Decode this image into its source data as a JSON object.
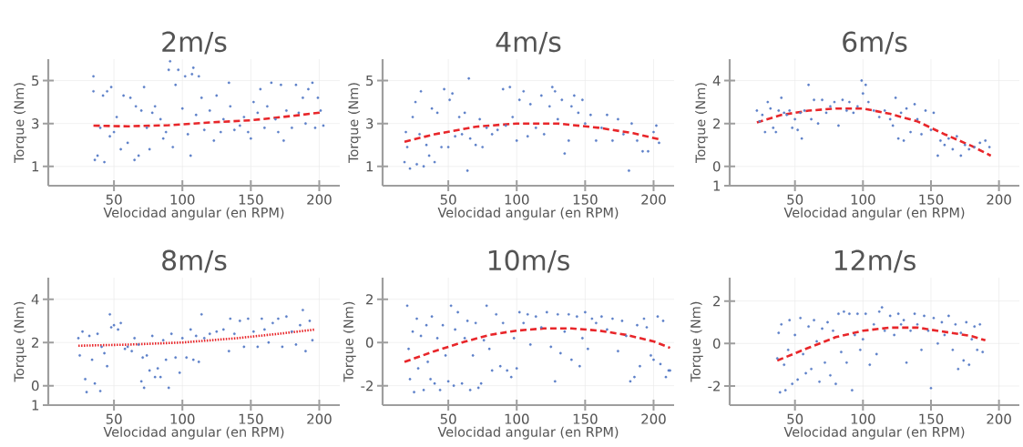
{
  "chart_data": [
    {
      "type": "scatter",
      "title": "2m/s",
      "xlabel": "Velocidad angular (en RPM)",
      "ylabel": "Torque (Nm)",
      "xlim": [
        2,
        215
      ],
      "xticks": [
        50,
        100,
        150,
        200
      ],
      "ylim": [
        0.1,
        6
      ],
      "yticks": [
        1,
        3,
        5
      ],
      "grid": true,
      "series": [
        {
          "color": "#5b7fc8",
          "x": [
            35,
            35,
            36,
            38,
            40,
            42,
            43,
            45,
            47,
            48,
            50,
            52,
            55,
            57,
            60,
            62,
            65,
            66,
            68,
            70,
            72,
            74,
            76,
            78,
            80,
            84,
            86,
            88,
            90,
            91,
            93,
            95,
            97,
            100,
            102,
            104,
            106,
            107,
            108,
            110,
            112,
            114,
            116,
            120,
            123,
            125,
            128,
            130,
            134,
            135,
            138,
            142,
            145,
            148,
            150,
            152,
            155,
            157,
            160,
            162,
            165,
            168,
            170,
            172,
            174,
            176,
            180,
            183,
            185,
            188,
            190,
            192,
            195,
            197,
            199,
            201,
            203
          ],
          "values": [
            5.2,
            4.5,
            1.3,
            1.5,
            2.8,
            4.3,
            1.2,
            4.5,
            2.4,
            4.7,
            2.6,
            3.3,
            1.8,
            4.3,
            2.1,
            4.2,
            1.3,
            3.8,
            1.5,
            3.6,
            4.7,
            2.8,
            1.8,
            3.5,
            3.8,
            3.2,
            2.3,
            2.6,
            5.5,
            5.9,
            1.9,
            4.8,
            5.5,
            3.7,
            5.2,
            2.5,
            1.5,
            5.3,
            5.6,
            3.4,
            5.2,
            4.2,
            2.7,
            3.6,
            2.2,
            4.3,
            2.6,
            3.2,
            4.9,
            3.8,
            2.7,
            2.9,
            3.3,
            2.6,
            2.3,
            4.0,
            3.5,
            4.6,
            2.8,
            3.8,
            4.9,
            3.2,
            2.6,
            4.8,
            2.2,
            3.6,
            2.8,
            4.8,
            3.5,
            4.2,
            3.0,
            4.6,
            4.9,
            2.8,
            4.2,
            3.6,
            2.9
          ]
        },
        {
          "type": "line",
          "color": "#e8262a",
          "line_style": "dashed",
          "marker": "none",
          "x": [
            35,
            60,
            90,
            120,
            150,
            180,
            202
          ],
          "values": [
            2.9,
            2.87,
            2.92,
            3.05,
            3.15,
            3.35,
            3.52
          ]
        }
      ]
    },
    {
      "type": "scatter",
      "title": "4m/s",
      "xlabel": "Velocidad angular (en RPM)",
      "ylabel": "Torque (Nm)",
      "xlim": [
        2,
        215
      ],
      "xticks": [
        50,
        100,
        150,
        200
      ],
      "ylim": [
        0.1,
        6
      ],
      "yticks": [
        1,
        3,
        5
      ],
      "grid": true,
      "series": [
        {
          "color": "#5b7fc8",
          "x": [
            18,
            19,
            20,
            22,
            24,
            26,
            27,
            29,
            30,
            32,
            34,
            36,
            38,
            40,
            42,
            45,
            47,
            50,
            51,
            53,
            55,
            58,
            60,
            62,
            64,
            65,
            66,
            70,
            73,
            75,
            78,
            82,
            86,
            90,
            92,
            95,
            97,
            100,
            102,
            105,
            108,
            110,
            114,
            118,
            120,
            124,
            126,
            128,
            130,
            133,
            135,
            138,
            140,
            142,
            145,
            148,
            150,
            154,
            158,
            162,
            166,
            170,
            174,
            178,
            182,
            184,
            188,
            192,
            196,
            200,
            202,
            204
          ],
          "values": [
            1.2,
            2.6,
            1.9,
            0.9,
            3.3,
            4.0,
            1.1,
            2.5,
            4.5,
            1.0,
            2.0,
            1.5,
            3.7,
            1.2,
            3.5,
            1.9,
            4.6,
            1.9,
            4.1,
            4.4,
            2.4,
            3.3,
            2.5,
            3.5,
            0.8,
            5.1,
            2.3,
            2.0,
            3.2,
            1.9,
            2.8,
            2.5,
            2.7,
            4.6,
            2.9,
            4.7,
            3.3,
            2.2,
            4.1,
            4.5,
            2.4,
            3.9,
            2.8,
            4.3,
            2.5,
            3.8,
            4.7,
            4.5,
            3.2,
            4.1,
            1.6,
            2.2,
            3.8,
            4.3,
            3.5,
            4.1,
            3.0,
            3.4,
            2.2,
            2.8,
            3.4,
            2.2,
            3.2,
            2.5,
            0.8,
            3.0,
            2.2,
            1.7,
            1.7,
            2.6,
            2.9,
            2.1
          ]
        },
        {
          "type": "line",
          "color": "#e8262a",
          "line_style": "dashed",
          "marker": "none",
          "x": [
            18,
            40,
            70,
            100,
            130,
            160,
            185,
            205
          ],
          "values": [
            2.15,
            2.5,
            2.85,
            3.0,
            3.0,
            2.8,
            2.55,
            2.25
          ]
        }
      ]
    },
    {
      "type": "scatter",
      "title": "6m/s",
      "xlabel": "Velocidad angular (en RPM)",
      "ylabel": "Torque (Nm)",
      "xlim": [
        2,
        215
      ],
      "xticks": [
        50,
        100,
        150,
        200
      ],
      "ylim": [
        -0.9,
        5
      ],
      "yticks": [
        {
          "value": -0.9,
          "label": "1"
        },
        0,
        2,
        4
      ],
      "grid": true,
      "series": [
        {
          "color": "#5b7fc8",
          "x": [
            22,
            24,
            26,
            28,
            30,
            32,
            34,
            36,
            38,
            40,
            42,
            44,
            46,
            48,
            50,
            52,
            54,
            55,
            57,
            60,
            62,
            64,
            67,
            70,
            73,
            76,
            79,
            82,
            85,
            88,
            90,
            93,
            96,
            99,
            100,
            102,
            104,
            108,
            112,
            116,
            120,
            122,
            124,
            126,
            128,
            130,
            132,
            135,
            138,
            140,
            143,
            146,
            150,
            152,
            155,
            157,
            160,
            163,
            166,
            169,
            172,
            175,
            178,
            182,
            186,
            190,
            193
          ],
          "values": [
            2.6,
            2.1,
            2.4,
            1.6,
            3.0,
            2.7,
            1.8,
            1.6,
            2.6,
            3.2,
            2.5,
            2.4,
            2.6,
            1.8,
            2.2,
            1.7,
            2.5,
            1.3,
            2.6,
            3.8,
            2.2,
            3.1,
            2.0,
            3.1,
            2.5,
            2.8,
            3.0,
            1.9,
            3.1,
            2.6,
            3.0,
            2.5,
            2.8,
            4.0,
            3.4,
            3.8,
            3.0,
            2.6,
            2.3,
            2.6,
            2.2,
            1.9,
            3.2,
            1.3,
            2.5,
            1.2,
            2.7,
            1.6,
            2.9,
            2.2,
            1.5,
            2.6,
            1.7,
            2.5,
            0.5,
            1.2,
            1.0,
            1.3,
            0.8,
            1.4,
            0.5,
            1.0,
            0.8,
            0.9,
            1.1,
            1.2,
            0.9
          ]
        },
        {
          "type": "line",
          "color": "#e8262a",
          "line_style": "dashed",
          "marker": "none",
          "x": [
            22,
            40,
            60,
            80,
            100,
            120,
            140,
            160,
            180,
            194
          ],
          "values": [
            2.05,
            2.4,
            2.6,
            2.7,
            2.7,
            2.45,
            2.1,
            1.5,
            0.95,
            0.5
          ]
        }
      ]
    },
    {
      "type": "scatter",
      "title": "8m/s",
      "xlabel": "Velocidad angular (en RPM)",
      "ylabel": "Torque (Nm)",
      "xlim": [
        2,
        215
      ],
      "xticks": [
        50,
        100,
        150,
        200
      ],
      "ylim": [
        -0.9,
        5
      ],
      "yticks": [
        {
          "value": -0.9,
          "label": "1"
        },
        0,
        2,
        4
      ],
      "grid": true,
      "series": [
        {
          "color": "#5b7fc8",
          "x": [
            24,
            25,
            27,
            29,
            30,
            32,
            34,
            36,
            38,
            40,
            41,
            43,
            45,
            47,
            48,
            50,
            53,
            55,
            58,
            60,
            63,
            65,
            68,
            70,
            71,
            72,
            74,
            76,
            78,
            80,
            82,
            84,
            86,
            88,
            90,
            92,
            95,
            98,
            100,
            103,
            106,
            108,
            110,
            112,
            114,
            116,
            120,
            125,
            130,
            134,
            135,
            138,
            142,
            145,
            148,
            152,
            155,
            158,
            160,
            163,
            166,
            170,
            173,
            176,
            180,
            183,
            186,
            188,
            190,
            193,
            195
          ],
          "values": [
            2.2,
            1.4,
            2.5,
            0.3,
            -0.3,
            2.3,
            1.2,
            0.1,
            2.4,
            -0.25,
            1.8,
            1.5,
            0.9,
            3.3,
            2.7,
            2.8,
            2.6,
            2.9,
            1.7,
            1.8,
            1.6,
            2.2,
            1.9,
            0.2,
            1.3,
            -0.1,
            1.4,
            0.7,
            2.3,
            0.4,
            0.8,
            0.4,
            2.1,
            1.2,
            -0.1,
            2.4,
            1.3,
            0.6,
            2.2,
            1.3,
            2.6,
            1.2,
            2.3,
            1.1,
            3.3,
            2.2,
            2.4,
            2.5,
            2.6,
            1.6,
            3.1,
            2.4,
            3.0,
            1.8,
            3.1,
            2.5,
            1.8,
            3.1,
            2.6,
            2.0,
            2.9,
            3.1,
            1.8,
            3.2,
            2.5,
            1.9,
            2.8,
            3.5,
            1.6,
            3.0,
            2.1
          ]
        },
        {
          "type": "line",
          "color": "#e8262a",
          "line_style": "dotted",
          "marker": "none",
          "x": [
            24,
            60,
            100,
            140,
            170,
            197
          ],
          "values": [
            1.85,
            1.9,
            2.0,
            2.2,
            2.4,
            2.6
          ]
        }
      ]
    },
    {
      "type": "scatter",
      "title": "10m/s",
      "xlabel": "Velocidad angular (en RPM)",
      "ylabel": "Torque (Nm)",
      "xlim": [
        2,
        215
      ],
      "xticks": [
        50,
        100,
        150,
        200
      ],
      "ylim": [
        -2.9,
        3
      ],
      "yticks": [
        -2,
        0,
        2
      ],
      "grid": true,
      "series": [
        {
          "color": "#5b7fc8",
          "x": [
            20,
            21,
            22,
            24,
            25,
            27,
            28,
            30,
            32,
            34,
            35,
            37,
            38,
            40,
            42,
            44,
            46,
            48,
            50,
            52,
            54,
            55,
            57,
            60,
            62,
            64,
            66,
            68,
            70,
            72,
            74,
            76,
            78,
            80,
            82,
            85,
            88,
            90,
            93,
            96,
            98,
            100,
            102,
            105,
            108,
            110,
            114,
            118,
            122,
            125,
            128,
            130,
            132,
            135,
            138,
            140,
            144,
            146,
            148,
            150,
            152,
            155,
            158,
            162,
            166,
            170,
            174,
            177,
            180,
            183,
            186,
            188,
            190,
            193,
            195,
            198,
            200,
            203,
            205,
            207,
            209,
            211,
            212
          ],
          "values": [
            1.7,
            -0.3,
            -1.7,
            0.5,
            -2.3,
            1.1,
            -1.2,
            0.3,
            -2.2,
            0.8,
            -0.9,
            -1.7,
            1.2,
            -1.9,
            0.2,
            -2.2,
            0.8,
            -0.6,
            -1.8,
            1.7,
            -2.0,
            0.6,
            1.4,
            -1.9,
            0.2,
            1.0,
            -2.2,
            -0.6,
            0.9,
            -2.1,
            -1.9,
            0.1,
            1.7,
            -0.3,
            -1.3,
            1.3,
            -1.1,
            0.9,
            -1.3,
            -1.6,
            0.2,
            -1.2,
            1.4,
            0.9,
            1.3,
            -0.1,
            1.2,
            0.7,
            1.4,
            -0.2,
            -1.8,
            1.3,
            -0.5,
            0.5,
            1.3,
            -0.8,
            1.2,
            -1.1,
            0.2,
            1.4,
            -0.3,
            1.1,
            0.9,
            1.2,
            0.6,
            1.1,
            -0.4,
            1.0,
            0.3,
            -1.8,
            -1.6,
            0.8,
            -1.1,
            1.1,
            0.7,
            -0.6,
            -0.8,
            1.2,
            -1.0,
            1.0,
            -1.6,
            -1.3,
            -1.3
          ]
        },
        {
          "type": "line",
          "color": "#e8262a",
          "line_style": "dashed",
          "marker": "none",
          "x": [
            18,
            40,
            60,
            80,
            100,
            120,
            140,
            160,
            180,
            200,
            212
          ],
          "values": [
            -0.9,
            -0.4,
            0.0,
            0.35,
            0.55,
            0.65,
            0.65,
            0.55,
            0.35,
            0.05,
            -0.25
          ]
        }
      ]
    },
    {
      "type": "scatter",
      "title": "12m/s",
      "xlabel": "Velocidad angular (en RPM)",
      "ylabel": "Torque (Nm)",
      "xlim": [
        2,
        215
      ],
      "xticks": [
        50,
        100,
        150,
        200
      ],
      "ylim": [
        -2.9,
        3.1
      ],
      "yticks": [
        -2,
        0,
        2
      ],
      "grid": true,
      "series": [
        {
          "color": "#5b7fc8",
          "x": [
            37,
            38,
            39,
            40,
            42,
            43,
            45,
            46,
            48,
            50,
            52,
            54,
            56,
            58,
            60,
            62,
            64,
            66,
            68,
            70,
            72,
            74,
            76,
            78,
            80,
            82,
            84,
            86,
            88,
            90,
            92,
            94,
            96,
            98,
            100,
            102,
            105,
            108,
            110,
            112,
            114,
            116,
            120,
            123,
            126,
            128,
            130,
            132,
            135,
            138,
            140,
            143,
            145,
            148,
            150,
            152,
            155,
            158,
            160,
            163,
            166,
            168,
            170,
            172,
            174,
            176,
            178,
            180,
            182,
            184,
            186,
            188
          ],
          "values": [
            -0.7,
            0.5,
            -2.3,
            0.9,
            -1.0,
            -2.2,
            -0.3,
            1.1,
            -1.9,
            0.4,
            -1.7,
            1.2,
            -0.5,
            -1.4,
            0.8,
            -1.2,
            1.1,
            0.1,
            -1.8,
            0.7,
            -0.9,
            1.0,
            -1.5,
            0.6,
            -1.9,
            1.4,
            -0.4,
            1.5,
            -0.9,
            1.4,
            -2.2,
            0.4,
            1.4,
            -0.3,
            0.2,
            1.4,
            -1.0,
            0.9,
            -0.5,
            1.5,
            1.7,
            0.6,
            1.3,
            0.4,
            1.4,
            0.9,
            1.1,
            -0.9,
            0.6,
            1.4,
            0.9,
            -0.3,
            1.3,
            0.6,
            -2.1,
            1.2,
            0.0,
            1.0,
            0.4,
            1.3,
            -0.3,
            0.9,
            -1.2,
            0.5,
            -0.8,
            1.0,
            -1.0,
            0.2,
            0.8,
            -0.3,
            0.9,
            -0.4
          ]
        },
        {
          "type": "line",
          "color": "#e8262a",
          "line_style": "dashed",
          "marker": "none",
          "x": [
            37,
            60,
            80,
            100,
            120,
            140,
            160,
            180,
            190
          ],
          "values": [
            -0.8,
            -0.2,
            0.3,
            0.6,
            0.75,
            0.75,
            0.55,
            0.35,
            0.15
          ]
        }
      ]
    }
  ]
}
